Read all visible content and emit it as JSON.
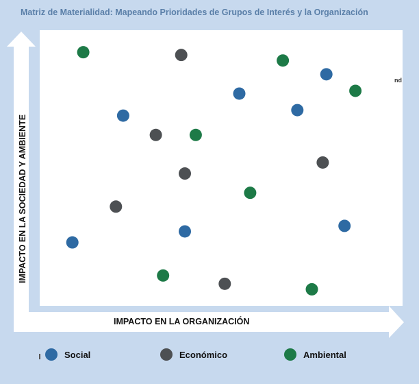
{
  "chart_data": {
    "type": "scatter",
    "title": "Matriz de Materialidad: Mapeando Prioridades de Grupos de Interés y la Organización",
    "xlabel": "IMPACTO EN LA ORGANIZACIÓN",
    "ylabel": "IMPACTO EN LA SOCIEDAD Y AMBIENTE",
    "annotation": "nd",
    "xlim": [
      0,
      10
    ],
    "ylim": [
      0,
      10
    ],
    "grid": false,
    "legend_position": "bottom",
    "series": [
      {
        "name": "Social",
        "color": "#2e6aa3",
        "points": [
          {
            "x": 7.9,
            "y": 8.4
          },
          {
            "x": 5.5,
            "y": 7.7
          },
          {
            "x": 7.1,
            "y": 7.1
          },
          {
            "x": 2.3,
            "y": 6.9
          },
          {
            "x": 8.4,
            "y": 2.9
          },
          {
            "x": 4.0,
            "y": 2.7
          },
          {
            "x": 0.9,
            "y": 2.3
          }
        ]
      },
      {
        "name": "Económico",
        "color": "#4d5053",
        "points": [
          {
            "x": 3.9,
            "y": 9.1
          },
          {
            "x": 3.2,
            "y": 6.2
          },
          {
            "x": 7.8,
            "y": 5.2
          },
          {
            "x": 4.0,
            "y": 4.8
          },
          {
            "x": 2.1,
            "y": 3.6
          },
          {
            "x": 5.1,
            "y": 0.8
          }
        ]
      },
      {
        "name": "Ambiental",
        "color": "#1d7a47",
        "points": [
          {
            "x": 1.2,
            "y": 9.2
          },
          {
            "x": 6.7,
            "y": 8.9
          },
          {
            "x": 8.7,
            "y": 7.8
          },
          {
            "x": 4.3,
            "y": 6.2
          },
          {
            "x": 5.8,
            "y": 4.1
          },
          {
            "x": 3.4,
            "y": 1.1
          },
          {
            "x": 7.5,
            "y": 0.6
          }
        ]
      }
    ]
  }
}
